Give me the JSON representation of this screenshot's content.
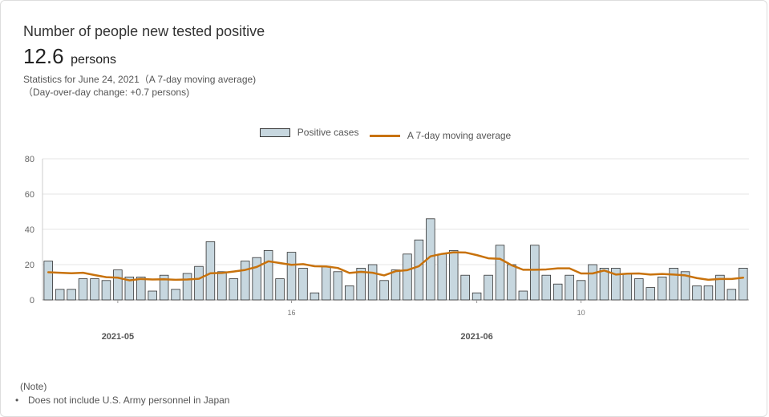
{
  "header": {
    "title": "Number of people new tested positive",
    "value": "12.6",
    "unit": "persons",
    "stat_text": "Statistics for June 24, 2021（A 7-day moving average)",
    "change_text": "（Day-over-day change: +0.7 persons)"
  },
  "colors": {
    "bar_fill": "#c7d7df",
    "bar_stroke": "#333333",
    "line": "#c8720c",
    "grid": "#e6e6e6"
  },
  "chart_data": {
    "type": "bar",
    "title": "Number of people new tested positive",
    "xlabel": "",
    "ylabel": "",
    "ylim": [
      0,
      80
    ],
    "yticks": [
      0,
      20,
      40,
      60,
      80
    ],
    "grid": true,
    "legend_position": "top-center",
    "x_ticks": [
      {
        "label": "2021-05",
        "index": 6,
        "bold": true
      },
      {
        "label": "16",
        "index": 21,
        "bold": false
      },
      {
        "label": "2021-06",
        "index": 37,
        "bold": true
      },
      {
        "label": "10",
        "index": 46,
        "bold": false
      }
    ],
    "series": [
      {
        "name": "Positive cases",
        "kind": "bar",
        "values": [
          22,
          6,
          6,
          12,
          12,
          11,
          17,
          13,
          13,
          5,
          14,
          6,
          15,
          19,
          33,
          16,
          12,
          22,
          24,
          28,
          12,
          27,
          18,
          4,
          19,
          16,
          8,
          18,
          20,
          11,
          17,
          26,
          34,
          46,
          26,
          28,
          14,
          4,
          14,
          31,
          20,
          5,
          31,
          14,
          9,
          14,
          11,
          20,
          18,
          18,
          15,
          12,
          7,
          13,
          18,
          16,
          8,
          8,
          14,
          6,
          18
        ]
      },
      {
        "name": "A 7-day moving average",
        "kind": "line",
        "values": [
          15.7,
          15.4,
          15.1,
          15.4,
          14.1,
          12.9,
          12.6,
          11.1,
          11.9,
          11.6,
          11.7,
          11.4,
          11.6,
          12.0,
          15.1,
          15.3,
          16.1,
          17.0,
          18.7,
          21.9,
          20.9,
          19.9,
          20.3,
          19.1,
          19.0,
          18.1,
          15.3,
          15.9,
          15.4,
          13.9,
          16.3,
          16.9,
          19.1,
          24.7,
          26.1,
          27.0,
          26.9,
          25.4,
          23.6,
          23.3,
          19.7,
          17.1,
          17.1,
          17.3,
          17.9,
          17.9,
          15.0,
          15.0,
          16.7,
          14.4,
          14.9,
          15.0,
          14.4,
          14.7,
          14.4,
          13.9,
          12.4,
          11.4,
          11.9,
          11.9,
          12.6
        ]
      }
    ]
  },
  "note": {
    "title": "(Note)",
    "items": [
      "Does not include U.S. Army personnel in Japan"
    ]
  }
}
